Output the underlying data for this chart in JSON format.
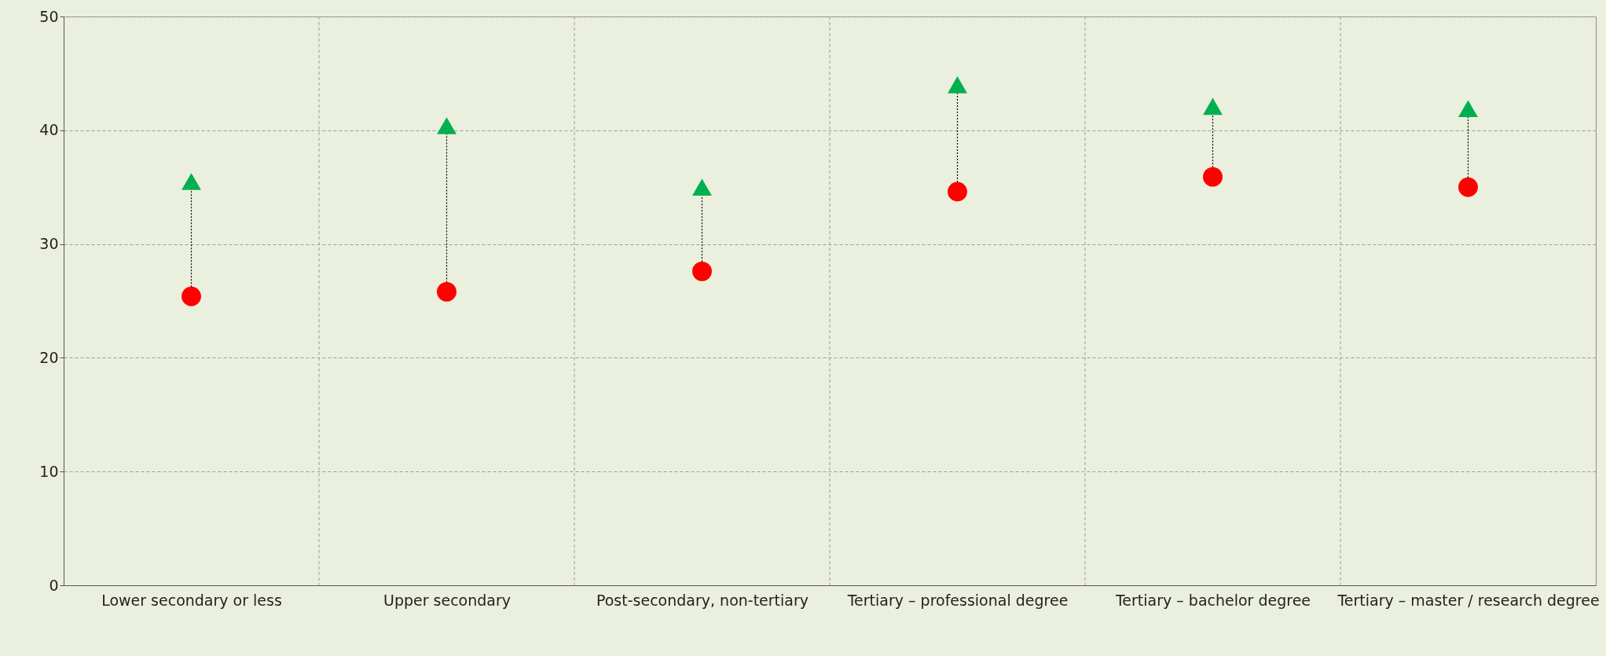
{
  "chart_data": {
    "type": "scatter",
    "categories": [
      "Lower secondary or less",
      "Upper secondary",
      "Post-secondary, non-tertiary",
      "Tertiary – professional degree",
      "Tertiary – bachelor degree",
      "Tertiary – master / research degree"
    ],
    "series": [
      {
        "color": "#ff0000",
        "marker": "circle",
        "values": [
          25.4,
          25.8,
          27.6,
          34.6,
          35.9,
          35.0
        ]
      },
      {
        "color": "#00b050",
        "marker": "triangle",
        "values": [
          35.5,
          40.4,
          35.0,
          44.0,
          42.1,
          41.9
        ]
      }
    ],
    "ylim": [
      0,
      50
    ],
    "yticks": [
      0,
      10,
      20,
      30,
      40,
      50
    ],
    "grid": true
  }
}
